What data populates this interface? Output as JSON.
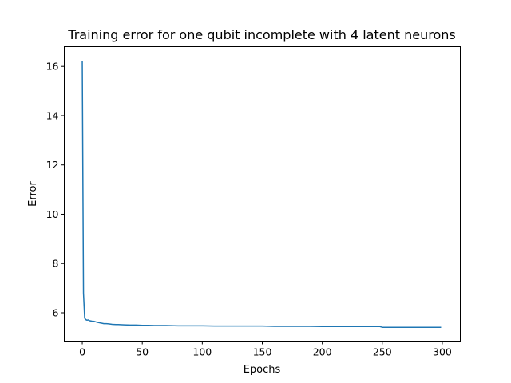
{
  "chart_data": {
    "type": "line",
    "title": "Training error for one qubit incomplete with 4 latent neurons",
    "xlabel": "Epochs",
    "ylabel": "Error",
    "xlim": [
      -15,
      315
    ],
    "ylim": [
      4.85,
      16.8
    ],
    "xticks": [
      0,
      50,
      100,
      150,
      200,
      250,
      300
    ],
    "yticks": [
      6,
      8,
      10,
      12,
      14,
      16
    ],
    "grid": false,
    "legend": "none",
    "series": [
      {
        "color": "#1f77b4",
        "x": [
          0,
          1,
          2,
          3,
          4,
          5,
          6,
          8,
          10,
          12,
          14,
          16,
          18,
          20,
          22,
          25,
          28,
          30,
          35,
          40,
          45,
          50,
          55,
          60,
          70,
          80,
          90,
          100,
          110,
          120,
          130,
          140,
          150,
          160,
          170,
          180,
          190,
          200,
          210,
          220,
          230,
          240,
          248,
          250,
          252,
          260,
          270,
          280,
          290,
          299
        ],
        "y": [
          16.2,
          6.8,
          5.78,
          5.72,
          5.7,
          5.71,
          5.68,
          5.66,
          5.65,
          5.62,
          5.6,
          5.58,
          5.56,
          5.56,
          5.55,
          5.53,
          5.52,
          5.52,
          5.51,
          5.5,
          5.5,
          5.49,
          5.49,
          5.48,
          5.48,
          5.47,
          5.47,
          5.47,
          5.46,
          5.46,
          5.46,
          5.46,
          5.46,
          5.45,
          5.45,
          5.45,
          5.45,
          5.44,
          5.44,
          5.44,
          5.44,
          5.44,
          5.44,
          5.41,
          5.41,
          5.41,
          5.41,
          5.41,
          5.41,
          5.41
        ]
      }
    ]
  }
}
